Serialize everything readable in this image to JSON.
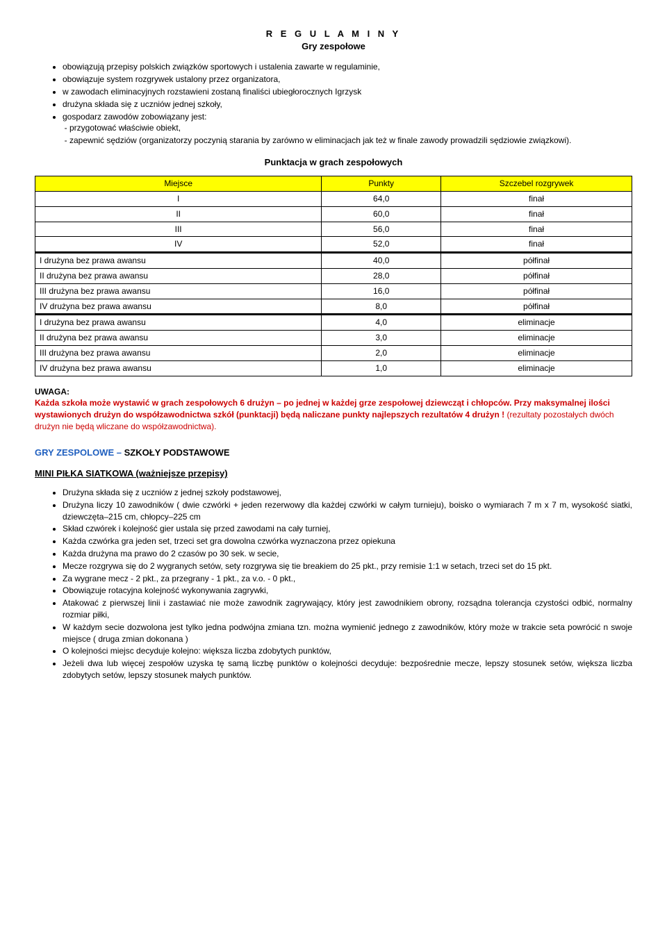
{
  "title": {
    "main": "R E G U L A M I N Y",
    "sub": "Gry zespołowe"
  },
  "intro_bullets": [
    "obowiązują przepisy polskich związków sportowych i ustalenia zawarte w regulaminie,",
    "obowiązuje system rozgrywek ustalony przez organizatora,",
    "w zawodach eliminacyjnych rozstawieni zostaną finaliści ubiegłorocznych Igrzysk",
    "drużyna składa się z uczniów jednej szkoły,",
    "gospodarz zawodów zobowiązany jest:"
  ],
  "intro_sublist": [
    "przygotować właściwie obiekt,",
    "zapewnić sędziów (organizatorzy poczynią starania by zarówno w eliminacjach jak też w finale zawody prowadzili sędziowie związkowi)."
  ],
  "points_heading": "Punktacja w grach zespołowych",
  "table": {
    "columns": [
      "Miejsce",
      "Punkty",
      "Szczebel rozgrywek"
    ],
    "header_bg": "#ffff00",
    "groups": [
      {
        "rows": [
          [
            "I",
            "64,0",
            "finał"
          ],
          [
            "II",
            "60,0",
            "finał"
          ],
          [
            "III",
            "56,0",
            "finał"
          ],
          [
            "IV",
            "52,0",
            "finał"
          ]
        ],
        "first_col_align": "center"
      },
      {
        "rows": [
          [
            "I drużyna bez prawa awansu",
            "40,0",
            "półfinał"
          ],
          [
            "II drużyna bez prawa awansu",
            "28,0",
            "półfinał"
          ],
          [
            "III drużyna bez prawa awansu",
            "16,0",
            "półfinał"
          ],
          [
            "IV drużyna bez prawa awansu",
            "8,0",
            "półfinał"
          ]
        ],
        "first_col_align": "left"
      },
      {
        "rows": [
          [
            "I drużyna bez prawa awansu",
            "4,0",
            "eliminacje"
          ],
          [
            "II drużyna bez prawa awansu",
            "3,0",
            "eliminacje"
          ],
          [
            "III drużyna bez prawa awansu",
            "2,0",
            "eliminacje"
          ],
          [
            "IV drużyna bez prawa awansu",
            "1,0",
            "eliminacje"
          ]
        ],
        "first_col_align": "left"
      }
    ]
  },
  "uwaga": {
    "label": "UWAGA:",
    "red_bold": "Każda szkoła może wystawić w grach zespołowych 6 drużyn – po jednej w każdej grze zespołowej dziewcząt i chłopców. Przy maksymalnej ilości wystawionych drużyn do współzawodnictwa szkół (punktacji) będą naliczane punkty najlepszych rezultatów 4 drużyn ! ",
    "red_light": "(rezultaty pozostałych dwóch drużyn nie będą wliczane do współzawodnictwa)."
  },
  "section_sport": {
    "blue": "GRY ZESPOLOWE – ",
    "black": "SZKOŁY PODSTAWOWE"
  },
  "mini_heading": "MINI  PIŁKA  SIATKOWA  (ważniejsze przepisy)",
  "rules": [
    "Drużyna  składa  się  z uczniów z jednej  szkoły  podstawowej,",
    "Drużyna  liczy 10 zawodników  ( dwie  czwórki + jeden rezerwowy dla każdej czwórki w całym turnieju), boisko o wymiarach 7 m x 7 m, wysokość siatki, dziewczęta–215 cm, chłopcy–225 cm",
    "Skład czwórek i kolejność gier ustala się przed zawodami na cały turniej,",
    "Każda czwórka gra jeden set, trzeci set gra dowolna czwórka wyznaczona przez opiekuna",
    "Każda drużyna  ma  prawo do 2 czasów  po 30 sek. w secie,",
    "Mecze rozgrywa się do 2 wygranych setów, sety rozgrywa  się tie  breakiem  do  25 pkt.,  przy remisie 1:1 w setach, trzeci set do 15 pkt.",
    "Za wygrane  mecz - 2 pkt.,  za  przegrany - 1 pkt., za  v.o.  -  0 pkt.,",
    "Obowiązuje rotacyjna kolejność wykonywania zagrywki,",
    "Atakować z pierwszej linii i zastawiać nie może zawodnik zagrywający, który jest zawodnikiem obrony, rozsądna tolerancja czystości odbić, normalny rozmiar piłki,",
    "W każdym secie dozwolona jest tylko jedna podwójna zmiana tzn. można wymienić jednego  z zawodników, który może w trakcie seta powrócić n swoje miejsce ( druga zmian dokonana )",
    "O kolejności miejsc decyduje kolejno: większa liczba zdobytych punktów,",
    "Jeżeli dwa lub więcej zespołów uzyska tę samą liczbę punktów o kolejności decyduje: bezpośrednie mecze, lepszy stosunek setów, większa liczba zdobytych setów, lepszy stosunek małych punktów."
  ]
}
